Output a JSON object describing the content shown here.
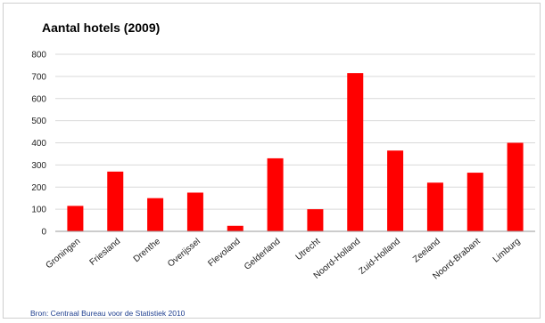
{
  "chart_data": {
    "type": "bar",
    "title": "Aantal hotels (2009)",
    "categories": [
      "Groningen",
      "Friesland",
      "Drenthe",
      "Overijssel",
      "Flevoland",
      "Gelderland",
      "Utrecht",
      "Noord-Holland",
      "Zuid-Holland",
      "Zeeland",
      "Noord-Brabant",
      "Limburg"
    ],
    "values": [
      115,
      270,
      150,
      175,
      25,
      330,
      100,
      715,
      365,
      220,
      265,
      400
    ],
    "ylim": [
      0,
      800
    ],
    "yticks": [
      0,
      100,
      200,
      300,
      400,
      500,
      600,
      700,
      800
    ],
    "grid": true,
    "legend": "none",
    "bar_color": "#ff0000"
  },
  "source_note": "Bron: Centraal Bureau voor de Statistiek 2010"
}
